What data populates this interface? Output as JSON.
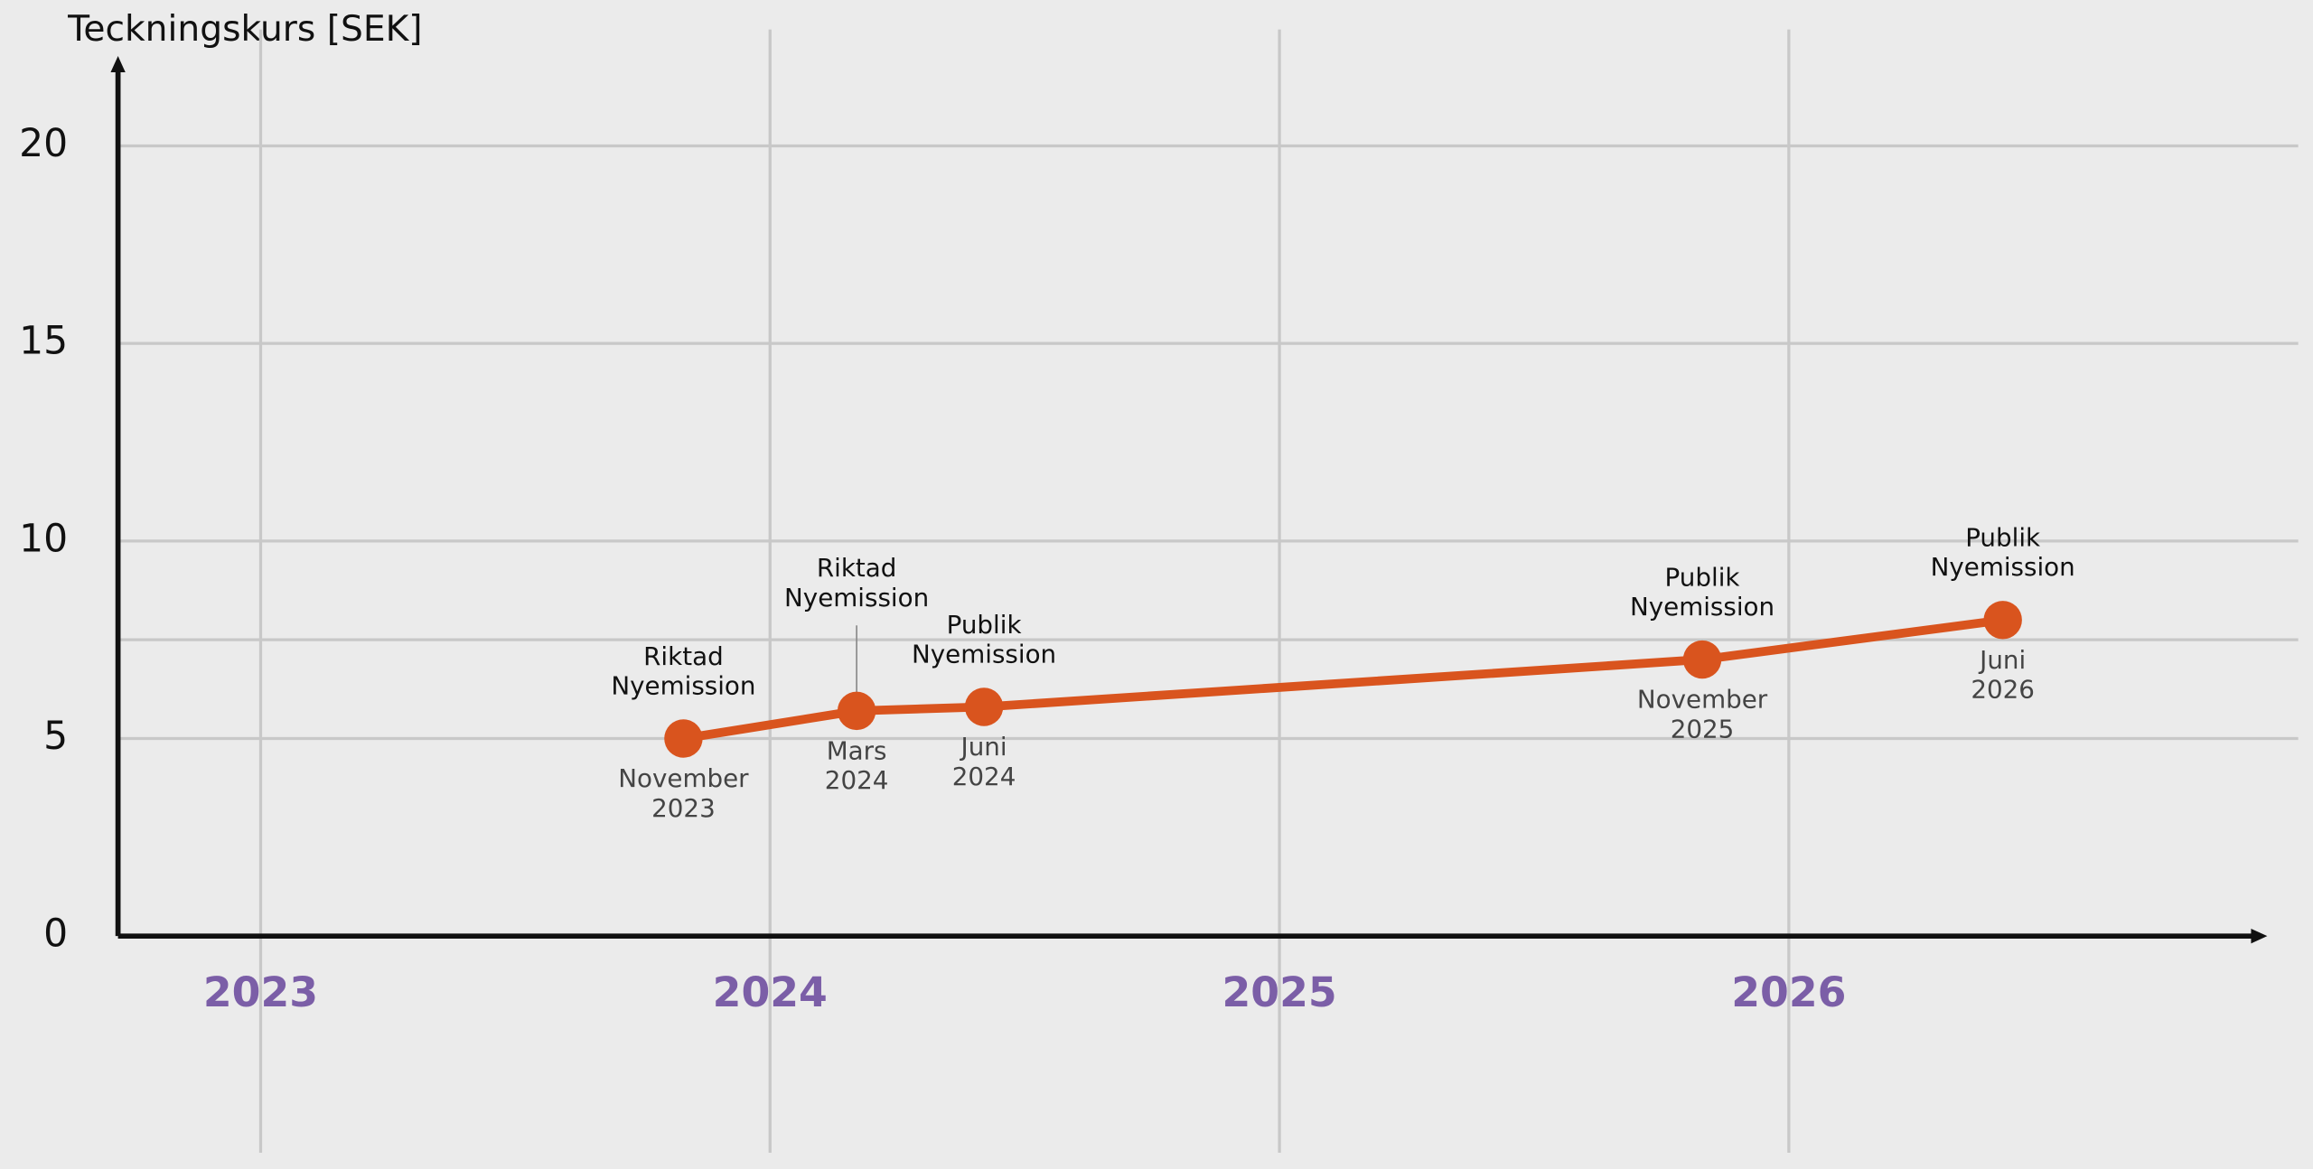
{
  "chart_data": {
    "type": "line",
    "y_label": "Teckningskurs [SEK]",
    "x": [
      2023.83,
      2024.17,
      2024.42,
      2025.83,
      2026.42
    ],
    "series": [
      {
        "color": "#d9541e",
        "values": [
          5,
          5.7,
          5.8,
          7,
          8
        ]
      }
    ],
    "annotations": [
      {
        "label": [
          "Riktad",
          "Nyemission"
        ],
        "date": [
          "November",
          "2023"
        ]
      },
      {
        "label": [
          "Riktad",
          "Nyemission"
        ],
        "date": [
          "Mars",
          "2024"
        ]
      },
      {
        "label": [
          "Publik",
          "Nyemission"
        ],
        "date": [
          "Juni",
          "2024"
        ]
      },
      {
        "label": [
          "Publik",
          "Nyemission"
        ],
        "date": [
          "November",
          "2025"
        ]
      },
      {
        "label": [
          "Publik",
          "Nyemission"
        ],
        "date": [
          "Juni",
          "2026"
        ]
      }
    ],
    "xlim": [
      2022.72,
      2027
    ],
    "xticks": [
      2023,
      2024,
      2025,
      2026
    ],
    "xtick_color": "#7b5ea7",
    "ylim": [
      0,
      22.2
    ],
    "yticks": [
      0,
      5,
      10,
      15,
      20
    ],
    "grid_lines": [
      5,
      7.5,
      10,
      15,
      20
    ],
    "grid": true
  }
}
